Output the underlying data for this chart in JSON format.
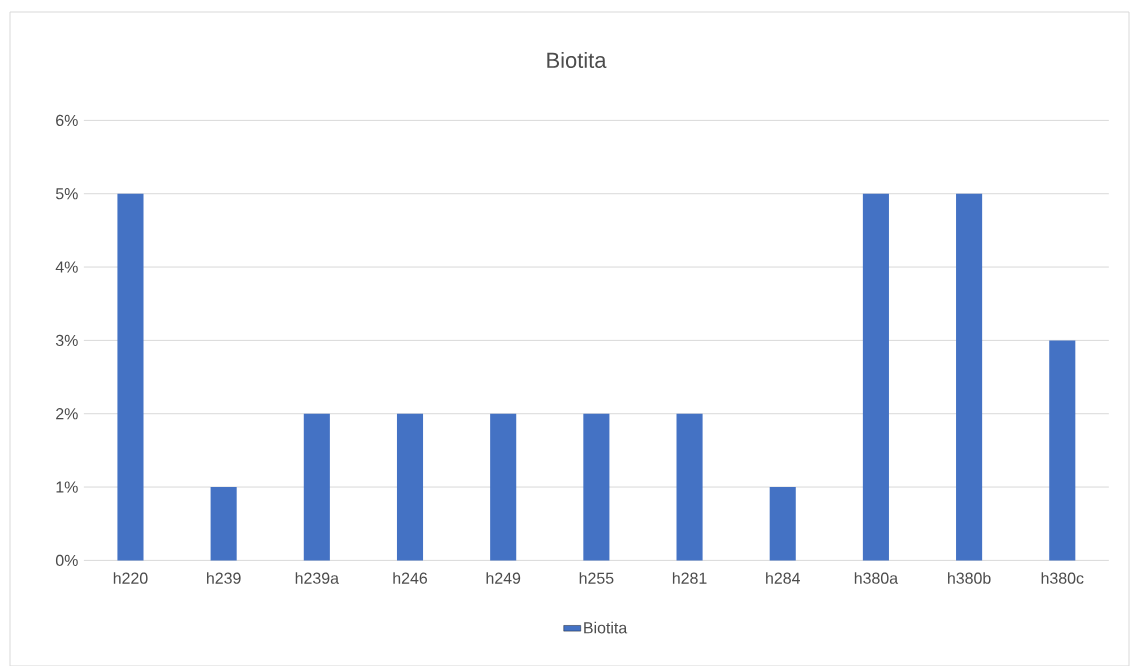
{
  "chart_data": {
    "type": "bar",
    "title": "Biotita",
    "categories": [
      "h220",
      "h239",
      "h239a",
      "h246",
      "h249",
      "h255",
      "h281",
      "h284",
      "h380a",
      "h380b",
      "h380c"
    ],
    "series": [
      {
        "name": "Biotita",
        "color": "#4472c4",
        "values": [
          5,
          1,
          2,
          2,
          2,
          2,
          2,
          1,
          5,
          5,
          3
        ]
      }
    ],
    "ylim": [
      0,
      6
    ],
    "yticks": [
      {
        "value": 0,
        "label": "0%"
      },
      {
        "value": 1,
        "label": "1%"
      },
      {
        "value": 2,
        "label": "2%"
      },
      {
        "value": 3,
        "label": "3%"
      },
      {
        "value": 4,
        "label": "4%"
      },
      {
        "value": 5,
        "label": "5%"
      },
      {
        "value": 6,
        "label": "6%"
      }
    ],
    "grid": "y",
    "legend": "bottom"
  }
}
